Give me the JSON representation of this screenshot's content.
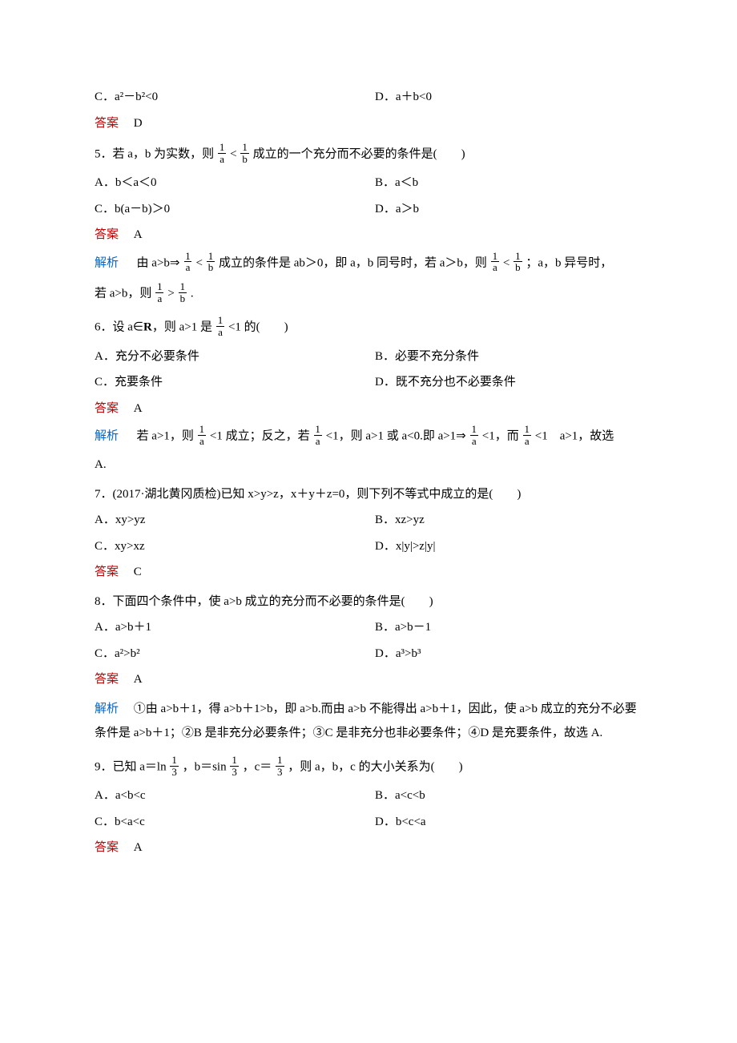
{
  "q4": {
    "optC": "C．a²－b²<0",
    "optD": "D．a＋b<0",
    "ansLabel": "答案",
    "ans": "D"
  },
  "q5": {
    "stem_pre": "5．若 a，b 为实数，则",
    "frac1_num": "1",
    "frac1_den": "a",
    "mid": "<",
    "frac2_num": "1",
    "frac2_den": "b",
    "stem_post": "成立的一个充分而不必要的条件是(　　)",
    "optA": "A．b＜a＜0",
    "optB": "B．a＜b",
    "optC": "C．b(a－b)＞0",
    "optD": "D．a＞b",
    "ansLabel": "答案",
    "ans": "A",
    "analysisLabel": "解析",
    "line1_a": "由 a>b⇒",
    "line1_b": "成立的条件是 ab＞0，即 a，b 同号时，若 a＞b，则",
    "line1_c": "；a，b 异号时，",
    "line2_a": "若 a>b，则",
    "line2_b": "."
  },
  "q6": {
    "stem_pre": "6．设 a∈",
    "R": "R",
    "stem_mid": "，则 a>1 是",
    "frac_num": "1",
    "frac_den": "a",
    "stem_post": "<1 的(　　)",
    "optA": "A．充分不必要条件",
    "optB": "B．必要不充分条件",
    "optC": "C．充要条件",
    "optD": "D．既不充分也不必要条件",
    "ansLabel": "答案",
    "ans": "A",
    "analysisLabel": "解析",
    "l_a": "若 a>1，则",
    "l_b": "<1 成立；反之，若",
    "l_c": "<1，则 a>1 或 a<0.即 a>1⇒",
    "l_d": "<1，而",
    "l_e": "<1　a>1，故选",
    "l2": "A."
  },
  "q7": {
    "stem": "7．(2017·湖北黄冈质检)已知 x>y>z，x＋y＋z=0，则下列不等式中成立的是(　　)",
    "optA": "A．xy>yz",
    "optB": "B．xz>yz",
    "optC": "C．xy>xz",
    "optD": "D．x|y|>z|y|",
    "ansLabel": "答案",
    "ans": "C"
  },
  "q8": {
    "stem": "8．下面四个条件中，使 a>b 成立的充分而不必要的条件是(　　)",
    "optA": "A．a>b＋1",
    "optB": "B．a>b－1",
    "optC": "C．a²>b²",
    "optD": "D．a³>b³",
    "ansLabel": "答案",
    "ans": "A",
    "analysisLabel": "解析",
    "body": "①由 a>b＋1，得 a>b＋1>b，即 a>b.而由 a>b 不能得出 a>b＋1，因此，使 a>b 成立的充分不必要条件是 a>b＋1；②B 是非充分必要条件；③C 是非充分也非必要条件；④D 是充要条件，故选 A."
  },
  "q9": {
    "stem_pre": "9．已知 a＝ln",
    "f1n": "1",
    "f1d": "3",
    "mid1": "，b＝sin",
    "f2n": "1",
    "f2d": "3",
    "mid2": "，c＝",
    "f3n": "1",
    "f3d": "3",
    "stem_post": "，则 a，b，c 的大小关系为(　　)",
    "optA": "A．a<b<c",
    "optB": "B．a<c<b",
    "optC": "C．b<a<c",
    "optD": "D．b<c<a",
    "ansLabel": "答案",
    "ans": "A"
  }
}
